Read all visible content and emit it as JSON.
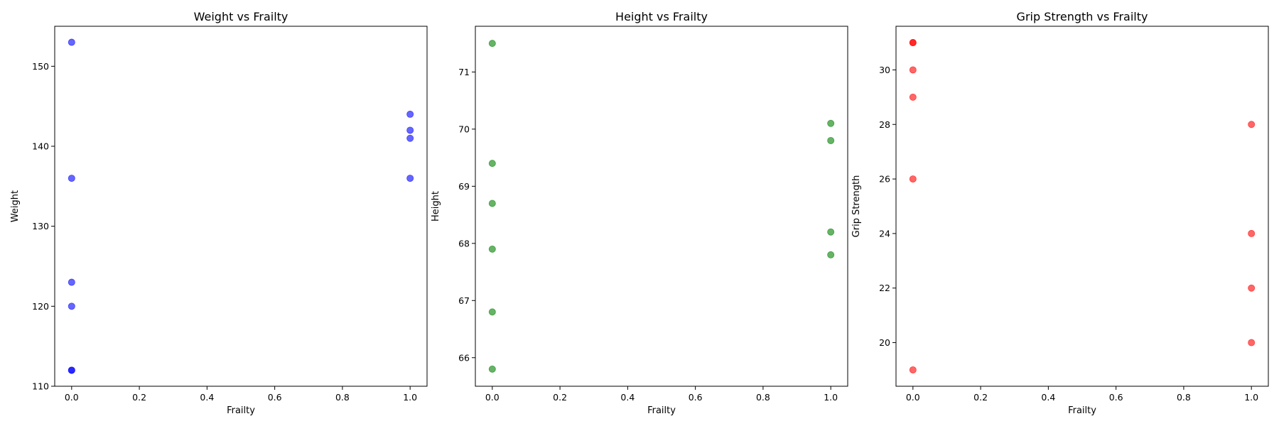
{
  "chart_data": [
    {
      "type": "scatter",
      "title": "Weight vs Frailty",
      "xlabel": "Frailty",
      "ylabel": "Weight",
      "xlim": [
        -0.05,
        1.05
      ],
      "ylim": [
        110,
        155
      ],
      "xticks": [
        "0.0",
        "0.2",
        "0.4",
        "0.6",
        "0.8",
        "1.0"
      ],
      "yticks": [
        "110",
        "120",
        "130",
        "140",
        "150"
      ],
      "color": "#0000ff",
      "alpha": 0.6,
      "grid": false,
      "points": [
        {
          "x": 0,
          "y": 153
        },
        {
          "x": 0,
          "y": 136
        },
        {
          "x": 0,
          "y": 123
        },
        {
          "x": 0,
          "y": 120
        },
        {
          "x": 0,
          "y": 112
        },
        {
          "x": 0,
          "y": 112
        },
        {
          "x": 1,
          "y": 144
        },
        {
          "x": 1,
          "y": 142
        },
        {
          "x": 1,
          "y": 141
        },
        {
          "x": 1,
          "y": 136
        }
      ]
    },
    {
      "type": "scatter",
      "title": "Height vs Frailty",
      "xlabel": "Frailty",
      "ylabel": "Height",
      "xlim": [
        -0.05,
        1.05
      ],
      "ylim": [
        65.5,
        71.8
      ],
      "xticks": [
        "0.0",
        "0.2",
        "0.4",
        "0.6",
        "0.8",
        "1.0"
      ],
      "yticks": [
        "66",
        "67",
        "68",
        "69",
        "70",
        "71"
      ],
      "color": "#008000",
      "alpha": 0.6,
      "grid": false,
      "points": [
        {
          "x": 0,
          "y": 71.5
        },
        {
          "x": 0,
          "y": 69.4
        },
        {
          "x": 0,
          "y": 68.7
        },
        {
          "x": 0,
          "y": 67.9
        },
        {
          "x": 0,
          "y": 66.8
        },
        {
          "x": 0,
          "y": 65.8
        },
        {
          "x": 1,
          "y": 70.1
        },
        {
          "x": 1,
          "y": 69.8
        },
        {
          "x": 1,
          "y": 68.2
        },
        {
          "x": 1,
          "y": 67.8
        }
      ]
    },
    {
      "type": "scatter",
      "title": "Grip Strength vs Frailty",
      "xlabel": "Frailty",
      "ylabel": "Grip Strength",
      "xlim": [
        -0.05,
        1.05
      ],
      "ylim": [
        18.4,
        31.6
      ],
      "xticks": [
        "0.0",
        "0.2",
        "0.4",
        "0.6",
        "0.8",
        "1.0"
      ],
      "yticks": [
        "20",
        "22",
        "24",
        "26",
        "28",
        "30"
      ],
      "color": "#ff0000",
      "alpha": 0.6,
      "grid": false,
      "points": [
        {
          "x": 0,
          "y": 31
        },
        {
          "x": 0,
          "y": 31
        },
        {
          "x": 0,
          "y": 30
        },
        {
          "x": 0,
          "y": 29
        },
        {
          "x": 0,
          "y": 26
        },
        {
          "x": 0,
          "y": 19
        },
        {
          "x": 1,
          "y": 28
        },
        {
          "x": 1,
          "y": 24
        },
        {
          "x": 1,
          "y": 22
        },
        {
          "x": 1,
          "y": 20
        }
      ]
    }
  ]
}
